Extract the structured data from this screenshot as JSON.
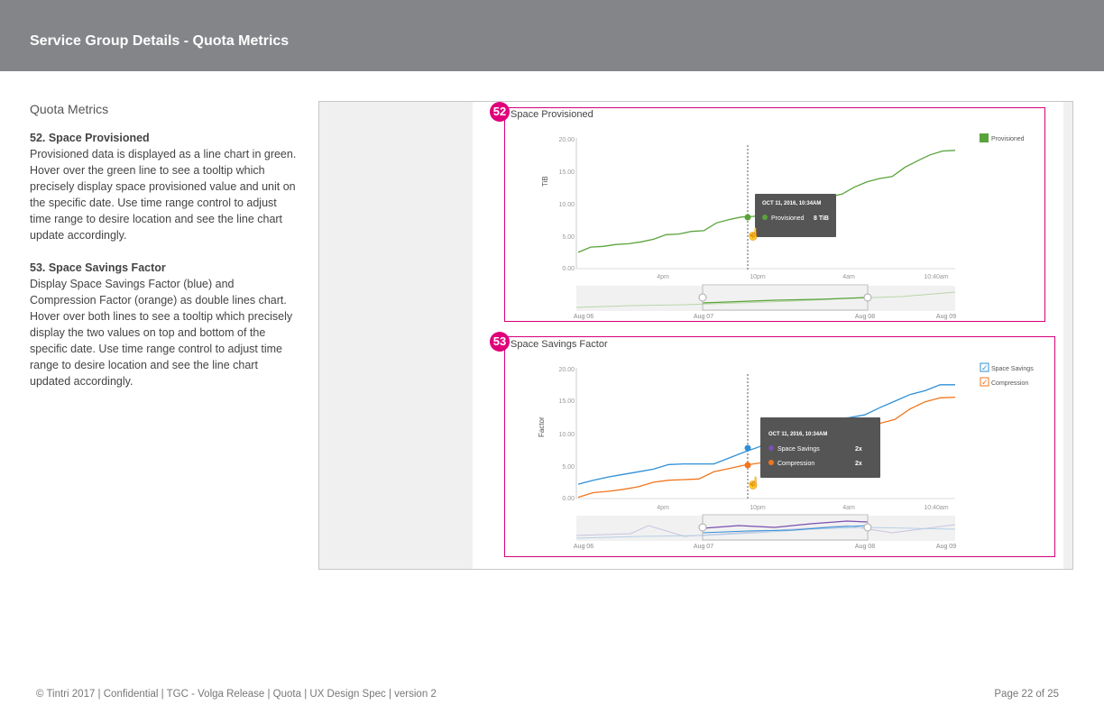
{
  "header": {
    "title": "Service Group Details - Quota Metrics"
  },
  "left": {
    "section_title": "Quota Metrics",
    "items": [
      {
        "heading": "52. Space Provisioned",
        "body": "Provisioned data is displayed as a line chart in green. Hover over the green line to see a tooltip which precisely display space provisioned value and unit on the specific date. Use time range control to adjust time range to desire location and see the line chart update accordingly."
      },
      {
        "heading": "53. Space Savings Factor",
        "body": "Display Space Savings Factor (blue) and Compression Factor (orange) as double lines chart. Hover over both lines to see a tooltip which precisely display the two values on top and bottom of the specific date. Use time range control to adjust time range to desire location and see the line chart updated accordingly."
      }
    ]
  },
  "annotations": {
    "a52": "52",
    "a53": "53"
  },
  "chart1": {
    "title": "Space Provisioned",
    "ylabel": "TiB",
    "yticks": [
      "20.00",
      "15.00",
      "10.00",
      "5.00",
      "0.00"
    ],
    "xticks": [
      "4pm",
      "10pm",
      "4am",
      "10:40am"
    ],
    "legend": "Provisioned",
    "tooltip": {
      "date": "OCT 11, 2016, 10:34AM",
      "label": "Provisioned",
      "value": "8 TiB"
    },
    "nav_ticks": [
      "Aug 06",
      "Aug 07",
      "Aug 08",
      "Aug 09"
    ]
  },
  "chart2": {
    "title": "Space Savings Factor",
    "ylabel": "Factor",
    "yticks": [
      "20.00",
      "15.00",
      "10.00",
      "5.00",
      "0.00"
    ],
    "xticks": [
      "4pm",
      "10pm",
      "4am",
      "10:40am"
    ],
    "legend": [
      "Space Savings",
      "Compression"
    ],
    "tooltip": {
      "date": "OCT 11, 2016, 10:34AM",
      "label1": "Space Savings",
      "value1": "2x",
      "label2": "Compression",
      "value2": "2x"
    },
    "nav_ticks": [
      "Aug 06",
      "Aug 07",
      "Aug 08",
      "Aug 09"
    ]
  },
  "chart_data": [
    {
      "type": "line",
      "title": "Space Provisioned",
      "ylabel": "TiB",
      "ylim": [
        0,
        20
      ],
      "x_ticks": [
        "4pm",
        "10pm",
        "4am",
        "10:40am"
      ],
      "series": [
        {
          "name": "Provisioned",
          "color": "#5aa33b",
          "values": [
            2.5,
            3.3,
            3.4,
            3.7,
            3.8,
            4.1,
            4.5,
            5.2,
            5.3,
            5.7,
            5.8,
            7.0,
            7.5,
            7.9,
            8.0,
            8.8,
            9.7,
            10.4,
            10.7,
            11.1,
            11.0,
            11.4,
            12.5,
            13.3,
            13.8,
            14.1,
            15.5,
            16.5,
            17.4,
            18.0,
            18.1
          ]
        }
      ]
    },
    {
      "type": "line",
      "title": "Space Savings Factor",
      "ylabel": "Factor",
      "ylim": [
        0,
        20
      ],
      "x_ticks": [
        "4pm",
        "10pm",
        "4am",
        "10:40am"
      ],
      "series": [
        {
          "name": "Space Savings",
          "color": "#2f8fd6",
          "values": [
            2.2,
            2.8,
            3.3,
            3.7,
            4.1,
            4.5,
            5.2,
            5.3,
            5.3,
            5.3,
            6.2,
            7.1,
            7.9,
            9.1,
            10.2,
            10.9,
            11.6,
            12.1,
            12.4,
            12.8,
            13.9,
            14.9,
            15.9,
            16.5,
            17.4,
            17.4
          ]
        },
        {
          "name": "Compression",
          "color": "#f0761e",
          "values": [
            0.2,
            0.9,
            1.1,
            1.4,
            1.8,
            2.5,
            2.8,
            2.9,
            3.0,
            4.1,
            4.6,
            5.1,
            5.4,
            6.4,
            7.4,
            8.6,
            9.1,
            9.7,
            10.2,
            10.9,
            11.5,
            12.1,
            13.7,
            14.8,
            15.4,
            15.5
          ]
        }
      ]
    }
  ],
  "footer": {
    "left": "© Tintri 2017  | Confidential |  TGC - Volga Release  |  Quota  |  UX Design Spec  |  version 2",
    "right": "Page 22 of 25"
  }
}
